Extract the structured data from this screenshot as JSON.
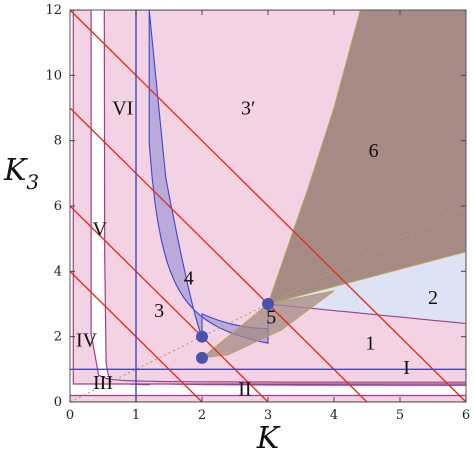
{
  "chart_data": {
    "type": "region",
    "title": "",
    "xlabel": "K",
    "ylabel": {
      "base": "K",
      "sub": "3"
    },
    "xlim": [
      0,
      6
    ],
    "ylim": [
      0,
      12
    ],
    "xticks": [
      0,
      1,
      2,
      3,
      4,
      5,
      6
    ],
    "yticks": [
      0,
      2,
      4,
      6,
      8,
      10,
      12
    ],
    "colors": {
      "pink": "#f3d3e3",
      "purple": "#b9aadb",
      "brown": "#a58a86",
      "blue_light": "#dde3f4",
      "boundary": "#9b3f8e",
      "red_line": "#e23218",
      "blue_line": "#3b49c8",
      "dotted": "#b9a25a",
      "point": "#4a52b0"
    },
    "red_lines_sum": [
      4,
      6,
      9,
      12
    ],
    "vertical_line_x": 1,
    "horizontal_line_y": 1,
    "points": [
      {
        "x": 2,
        "y": 1.35
      },
      {
        "x": 2,
        "y": 2
      },
      {
        "x": 3,
        "y": 3
      }
    ],
    "region_labels": [
      {
        "text": "VI",
        "x": 0.8,
        "y": 8.8
      },
      {
        "text": "3′",
        "x": 2.7,
        "y": 8.8
      },
      {
        "text": "6",
        "x": 4.6,
        "y": 7.5
      },
      {
        "text": "V",
        "x": 0.45,
        "y": 5.1
      },
      {
        "text": "4",
        "x": 1.8,
        "y": 3.6
      },
      {
        "text": "2",
        "x": 5.5,
        "y": 3.0
      },
      {
        "text": "3",
        "x": 1.35,
        "y": 2.6
      },
      {
        "text": "5",
        "x": 3.05,
        "y": 2.4
      },
      {
        "text": "1",
        "x": 4.55,
        "y": 1.6
      },
      {
        "text": "IV",
        "x": 0.25,
        "y": 1.7
      },
      {
        "text": "I",
        "x": 5.1,
        "y": 0.85
      },
      {
        "text": "III",
        "x": 0.5,
        "y": 0.4
      },
      {
        "text": "II",
        "x": 2.65,
        "y": 0.2
      }
    ]
  }
}
